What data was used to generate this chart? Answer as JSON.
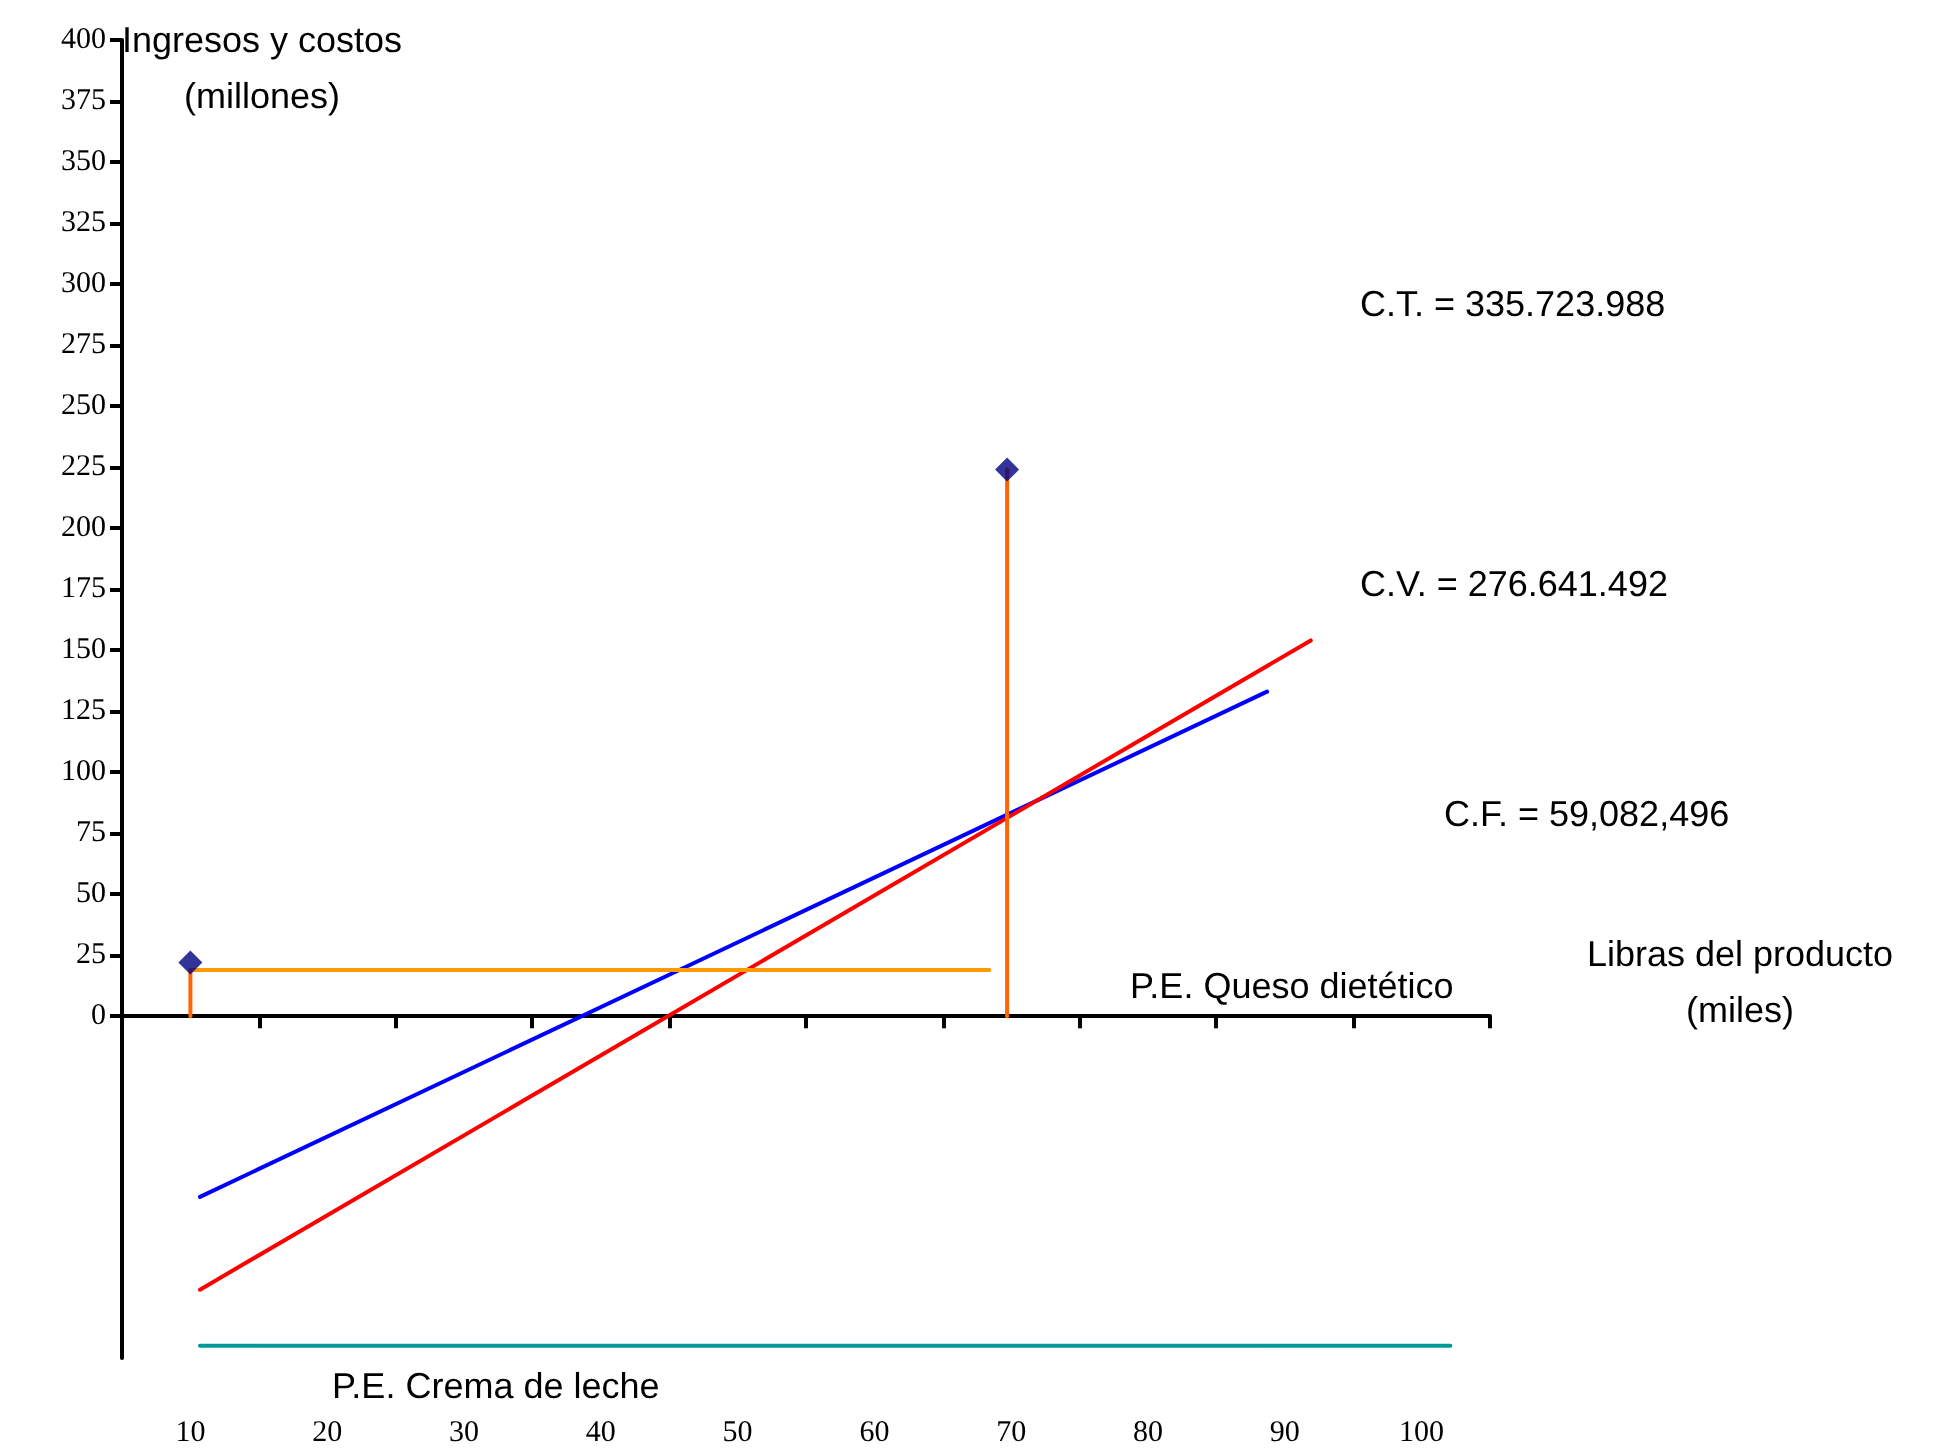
{
  "chart_data": {
    "type": "line",
    "xlabel": "Libras del producto\n(miles)",
    "ylabel": "Ingresos y costos\n(millones)",
    "xlim": [
      5,
      105
    ],
    "xticks": [
      {
        "value": 5,
        "label": null
      },
      10,
      {
        "value": 15,
        "label": null
      },
      20,
      {
        "value": 25,
        "label": null
      },
      30,
      {
        "value": 35,
        "label": null
      },
      40,
      {
        "value": 45,
        "label": null
      },
      50,
      {
        "value": 55,
        "label": null
      },
      60,
      {
        "value": 65,
        "label": null
      },
      70,
      {
        "value": 75,
        "label": null
      },
      80,
      {
        "value": 85,
        "label": null
      },
      90,
      {
        "value": 95,
        "label": null
      },
      100,
      {
        "value": 105,
        "label": null
      }
    ],
    "ylim": [
      -140,
      400
    ],
    "yticks": [
      0,
      25,
      50,
      75,
      100,
      125,
      150,
      175,
      200,
      225,
      250,
      275,
      300,
      325,
      350,
      375,
      400
    ],
    "series": [
      {
        "type": "line",
        "color": "#0000ff",
        "marker": "none",
        "x": [
          10.7,
          88.7
        ],
        "values": [
          -74,
          133
        ]
      },
      {
        "type": "line",
        "color": "#ff0000",
        "marker": "none",
        "x": [
          10.7,
          91.9
        ],
        "values": [
          -112,
          154
        ]
      },
      {
        "type": "line",
        "color": "#ff9900",
        "marker": "none",
        "x": [
          10,
          68.4
        ],
        "values": [
          19,
          19
        ]
      },
      {
        "type": "line",
        "color": "#ff6600",
        "marker": "none",
        "x": [
          10,
          10
        ],
        "values": [
          0,
          19
        ]
      },
      {
        "type": "line",
        "color": "#ff6600",
        "marker": "none",
        "x": [
          69.7,
          69.7
        ],
        "values": [
          0,
          224
        ]
      },
      {
        "type": "line",
        "color": "#009999",
        "marker": "none",
        "x": [
          10.7,
          102.1
        ],
        "values": [
          -135,
          -135
        ]
      },
      {
        "type": "scatter",
        "color": "#000080",
        "marker": "diamond",
        "x": [
          10,
          69.7
        ],
        "values": [
          22,
          224
        ]
      }
    ],
    "annotations": [
      "C.T. = 335.723.988",
      "C.V. = 276.641.492",
      "C.F. = 59,082,496",
      "P.E. Queso dietético",
      "P.E. Crema de leche"
    ]
  }
}
